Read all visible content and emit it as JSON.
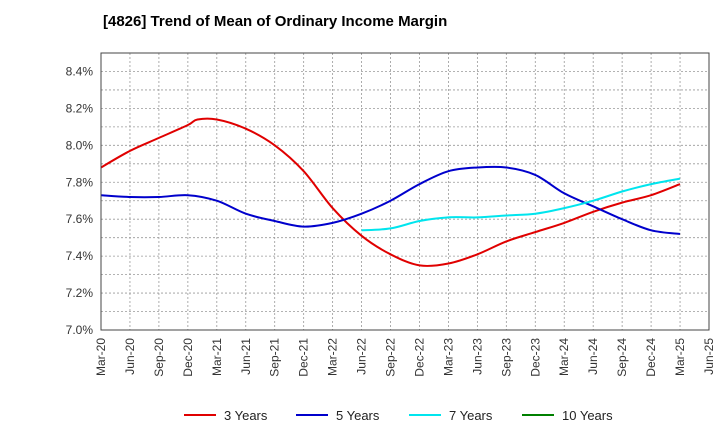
{
  "chart_data": {
    "type": "line",
    "title": "[4826]  Trend of Mean of Ordinary Income Margin",
    "xlabel": "",
    "ylabel": "",
    "ylim": [
      7.0,
      8.5
    ],
    "y_ticks": [
      "7.0%",
      "7.2%",
      "7.4%",
      "7.6%",
      "7.8%",
      "8.0%",
      "8.2%",
      "8.4%"
    ],
    "x_ticks": [
      "Mar-20",
      "Jun-20",
      "Sep-20",
      "Dec-20",
      "Mar-21",
      "Jun-21",
      "Sep-21",
      "Dec-21",
      "Mar-22",
      "Jun-22",
      "Sep-22",
      "Dec-22",
      "Mar-23",
      "Jun-23",
      "Sep-23",
      "Dec-23",
      "Mar-24",
      "Jun-24",
      "Sep-24",
      "Dec-24",
      "Mar-25",
      "Jun-25"
    ],
    "grid": true,
    "legend_position": "bottom",
    "series": [
      {
        "name": "3 Years",
        "color": "#e00000",
        "points": [
          [
            "Mar-20",
            7.88
          ],
          [
            "Jun-20",
            7.97
          ],
          [
            "Sep-20",
            8.04
          ],
          [
            "Dec-20",
            8.11
          ],
          [
            "Jan-21",
            8.14
          ],
          [
            "Mar-21",
            8.14
          ],
          [
            "Jun-21",
            8.09
          ],
          [
            "Sep-21",
            8.0
          ],
          [
            "Dec-21",
            7.86
          ],
          [
            "Mar-22",
            7.66
          ],
          [
            "Jun-22",
            7.51
          ],
          [
            "Sep-22",
            7.41
          ],
          [
            "Dec-22",
            7.35
          ],
          [
            "Mar-23",
            7.36
          ],
          [
            "Jun-23",
            7.41
          ],
          [
            "Sep-23",
            7.48
          ],
          [
            "Dec-23",
            7.53
          ],
          [
            "Mar-24",
            7.58
          ],
          [
            "Jun-24",
            7.64
          ],
          [
            "Sep-24",
            7.69
          ],
          [
            "Dec-24",
            7.73
          ],
          [
            "Mar-25",
            7.79
          ]
        ]
      },
      {
        "name": "5 Years",
        "color": "#0000cc",
        "points": [
          [
            "Mar-20",
            7.73
          ],
          [
            "Jun-20",
            7.72
          ],
          [
            "Sep-20",
            7.72
          ],
          [
            "Dec-20",
            7.73
          ],
          [
            "Mar-21",
            7.7
          ],
          [
            "Jun-21",
            7.63
          ],
          [
            "Sep-21",
            7.59
          ],
          [
            "Dec-21",
            7.56
          ],
          [
            "Mar-22",
            7.58
          ],
          [
            "Jun-22",
            7.63
          ],
          [
            "Sep-22",
            7.7
          ],
          [
            "Dec-22",
            7.79
          ],
          [
            "Mar-23",
            7.86
          ],
          [
            "Jun-23",
            7.88
          ],
          [
            "Sep-23",
            7.88
          ],
          [
            "Dec-23",
            7.84
          ],
          [
            "Mar-24",
            7.74
          ],
          [
            "Jun-24",
            7.67
          ],
          [
            "Sep-24",
            7.6
          ],
          [
            "Dec-24",
            7.54
          ],
          [
            "Mar-25",
            7.52
          ]
        ]
      },
      {
        "name": "7 Years",
        "color": "#00e5ee",
        "points": [
          [
            "Jun-22",
            7.54
          ],
          [
            "Sep-22",
            7.55
          ],
          [
            "Dec-22",
            7.59
          ],
          [
            "Mar-23",
            7.61
          ],
          [
            "Jun-23",
            7.61
          ],
          [
            "Sep-23",
            7.62
          ],
          [
            "Dec-23",
            7.63
          ],
          [
            "Mar-24",
            7.66
          ],
          [
            "Jun-24",
            7.7
          ],
          [
            "Sep-24",
            7.75
          ],
          [
            "Dec-24",
            7.79
          ],
          [
            "Mar-25",
            7.82
          ]
        ]
      },
      {
        "name": "10 Years",
        "color": "#008000",
        "points": []
      }
    ]
  }
}
